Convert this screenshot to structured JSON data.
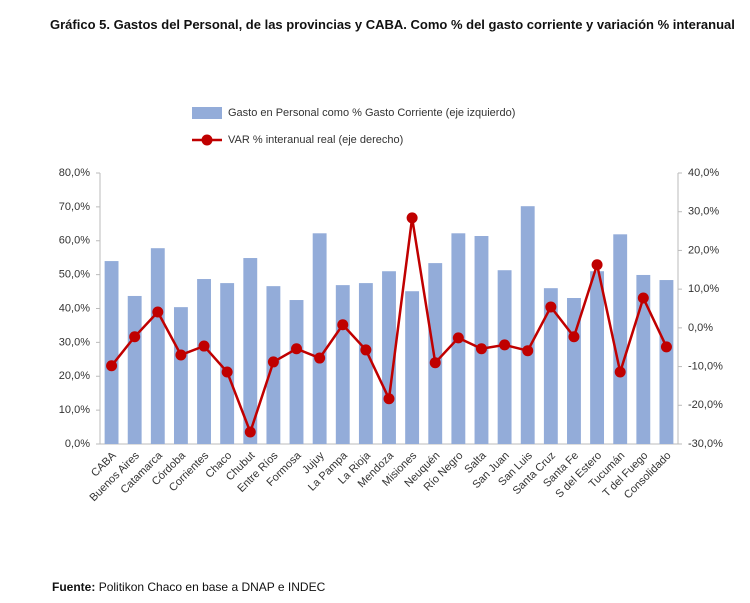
{
  "chart_data": {
    "type": "bar_line",
    "title": "Gráfico 5. Gastos del Personal, de las provincias y CABA. Como % del gasto corriente y variación % interanual",
    "categories": [
      "CABA",
      "Buenos Aires",
      "Catamarca",
      "Córdoba",
      "Corrientes",
      "Chaco",
      "Chubut",
      "Entre Ríos",
      "Formosa",
      "Jujuy",
      "La Pampa",
      "La Rioja",
      "Mendoza",
      "Misiones",
      "Neuquén",
      "Río Negro",
      "Salta",
      "San Juan",
      "San Luis",
      "Santa Cruz",
      "Santa Fe",
      "S del Estero",
      "Tucumán",
      "T del Fuego",
      "Consolidado"
    ],
    "series": [
      {
        "name": "Gasto en Personal como % Gasto Corriente (eje izquierdo)",
        "type": "bar",
        "color": "#93acd9",
        "values": [
          54.0,
          43.7,
          57.8,
          40.4,
          48.7,
          47.5,
          54.9,
          46.6,
          42.5,
          62.2,
          46.9,
          47.5,
          51.0,
          45.1,
          53.4,
          62.2,
          61.4,
          51.3,
          70.2,
          46.0,
          43.1,
          51.0,
          61.9,
          49.9,
          48.4
        ]
      },
      {
        "name": "VAR % interanual real (eje derecho)",
        "type": "line",
        "axis": "y2",
        "color": "#c00000",
        "values": [
          -9.8,
          -2.3,
          4.1,
          -7.0,
          -4.7,
          -11.4,
          -26.9,
          -8.8,
          -5.4,
          -7.8,
          0.8,
          -5.7,
          -18.3,
          28.4,
          -9.0,
          -2.6,
          -5.4,
          -4.4,
          -5.9,
          5.4,
          -2.3,
          16.3,
          -11.4,
          7.7,
          -4.9
        ]
      }
    ],
    "ylim": [
      0,
      80
    ],
    "yticks": [
      {
        "value": 0,
        "label": "0,0%"
      },
      {
        "value": 10,
        "label": "10,0%"
      },
      {
        "value": 20,
        "label": "20,0%"
      },
      {
        "value": 30,
        "label": "30,0%"
      },
      {
        "value": 40,
        "label": "40,0%"
      },
      {
        "value": 50,
        "label": "50,0%"
      },
      {
        "value": 60,
        "label": "60,0%"
      },
      {
        "value": 70,
        "label": "70,0%"
      },
      {
        "value": 80,
        "label": "80,0%"
      }
    ],
    "y2lim": [
      -30,
      40
    ],
    "y2ticks": [
      {
        "value": -30,
        "label": "-30,0%"
      },
      {
        "value": -20,
        "label": "-20,0%"
      },
      {
        "value": -10,
        "label": "-10,0%"
      },
      {
        "value": 0,
        "label": "0,0%"
      },
      {
        "value": 10,
        "label": "10,0%"
      },
      {
        "value": 20,
        "label": "20,0%"
      },
      {
        "value": 30,
        "label": "30,0%"
      },
      {
        "value": 40,
        "label": "40,0%"
      }
    ],
    "grid": false,
    "source": {
      "label": "Fuente:",
      "text": "Politikon Chaco en base a DNAP e INDEC"
    }
  }
}
